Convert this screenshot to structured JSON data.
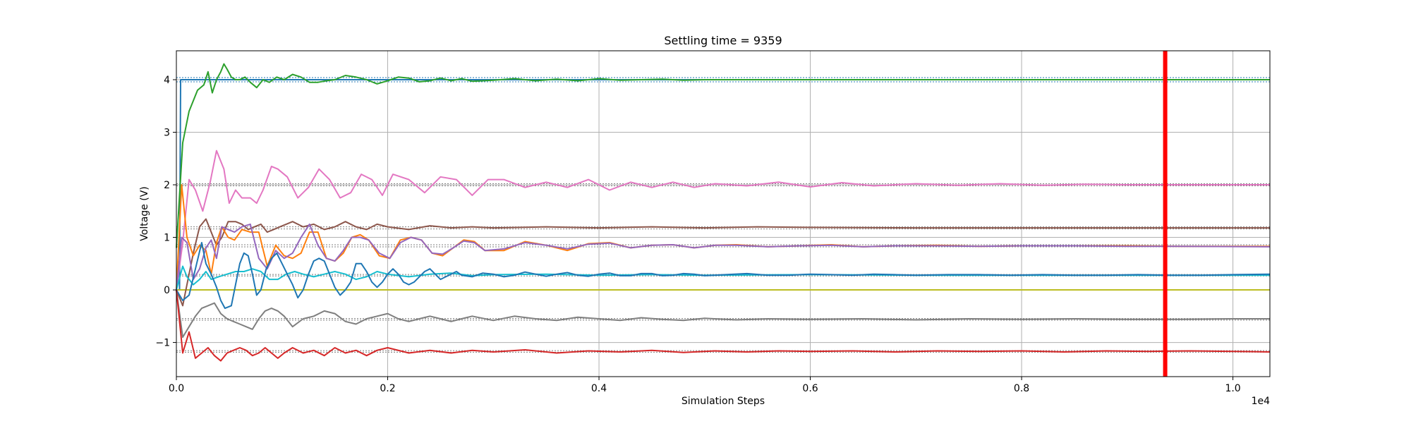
{
  "chart_data": {
    "type": "line",
    "title": "Settling time = 9359",
    "xlabel": "Simulation Steps",
    "ylabel": "Voltage (V)",
    "x_scale_label": "1e4",
    "xlim": [
      0,
      10350
    ],
    "ylim": [
      -1.65,
      4.55
    ],
    "grid": true,
    "x_ticks": [
      0,
      2000,
      4000,
      6000,
      8000,
      10000
    ],
    "x_tick_labels": [
      "0.0",
      "0.2",
      "0.4",
      "0.6",
      "0.8",
      "1.0"
    ],
    "y_ticks": [
      -1,
      0,
      1,
      2,
      3,
      4
    ],
    "y_tick_labels": [
      "−1",
      "0",
      "1",
      "2",
      "3",
      "4"
    ],
    "settling_marker": {
      "x": 9359,
      "color": "#ff0000"
    },
    "reference_lines": [
      {
        "y": 4.0,
        "band": 0.08,
        "color": "#1f77b4"
      },
      {
        "y": 2.0,
        "band": 0.04,
        "color": "#7f7f7f"
      },
      {
        "y": 1.18,
        "band": 0.04,
        "color": "#7f7f7f"
      },
      {
        "y": 0.84,
        "band": 0.04,
        "color": "#7f7f7f"
      },
      {
        "y": 0.28,
        "band": 0.03,
        "color": "#7f7f7f"
      },
      {
        "y": -0.56,
        "band": 0.03,
        "color": "#7f7f7f"
      },
      {
        "y": -1.17,
        "band": 0.03,
        "color": "#7f7f7f"
      }
    ],
    "series": [
      {
        "color": "#1f77b4",
        "x": [
          0,
          30,
          40,
          10350
        ],
        "y": [
          0,
          0,
          4.0,
          4.0
        ]
      },
      {
        "color": "#bcbd22",
        "x": [
          0,
          10350
        ],
        "y": [
          0,
          0
        ]
      },
      {
        "color": "#2ca02c",
        "x": [
          0,
          60,
          120,
          200,
          260,
          300,
          340,
          380,
          420,
          450,
          480,
          520,
          560,
          600,
          650,
          700,
          760,
          820,
          880,
          950,
          1020,
          1100,
          1180,
          1260,
          1340,
          1420,
          1500,
          1600,
          1700,
          1800,
          1900,
          2000,
          2100,
          2200,
          2300,
          2400,
          2500,
          2600,
          2700,
          2800,
          3000,
          3200,
          3400,
          3600,
          3800,
          4000,
          4200,
          4400,
          4600,
          4800,
          5000,
          5300,
          5600,
          6000,
          6500,
          7000,
          7500,
          8000,
          8500,
          9000,
          9500,
          10000,
          10350
        ],
        "y": [
          0.8,
          2.8,
          3.4,
          3.8,
          3.9,
          4.15,
          3.75,
          4.0,
          4.15,
          4.3,
          4.2,
          4.05,
          4.0,
          4.0,
          4.05,
          3.95,
          3.85,
          4.0,
          3.95,
          4.05,
          4.0,
          4.1,
          4.05,
          3.95,
          3.95,
          3.98,
          4.0,
          4.08,
          4.05,
          4.0,
          3.92,
          3.98,
          4.05,
          4.03,
          3.96,
          3.98,
          4.03,
          3.98,
          4.02,
          3.97,
          3.99,
          4.02,
          3.98,
          4.01,
          3.98,
          4.02,
          3.99,
          4.0,
          4.01,
          3.99,
          4.0,
          4.0,
          4.0,
          4.0,
          4.0,
          4.0,
          4.0,
          4.0,
          4.0,
          4.0,
          4.0,
          4.0,
          4.0
        ]
      },
      {
        "color": "#e377c2",
        "x": [
          0,
          60,
          120,
          180,
          250,
          320,
          380,
          450,
          500,
          560,
          620,
          700,
          760,
          820,
          900,
          960,
          1050,
          1150,
          1250,
          1350,
          1450,
          1550,
          1650,
          1750,
          1850,
          1950,
          2050,
          2200,
          2350,
          2500,
          2650,
          2800,
          2950,
          3100,
          3300,
          3500,
          3700,
          3900,
          4100,
          4300,
          4500,
          4700,
          4900,
          5100,
          5400,
          5700,
          6000,
          6300,
          6600,
          7000,
          7400,
          7800,
          8200,
          8600,
          9000,
          9400,
          9800,
          10350
        ],
        "y": [
          0,
          0.9,
          2.1,
          1.9,
          1.5,
          2.05,
          2.65,
          2.3,
          1.65,
          1.9,
          1.75,
          1.75,
          1.65,
          1.9,
          2.35,
          2.3,
          2.15,
          1.75,
          1.95,
          2.3,
          2.1,
          1.75,
          1.85,
          2.2,
          2.1,
          1.8,
          2.2,
          2.1,
          1.85,
          2.15,
          2.1,
          1.8,
          2.1,
          2.1,
          1.95,
          2.05,
          1.95,
          2.1,
          1.9,
          2.05,
          1.95,
          2.05,
          1.95,
          2.02,
          1.98,
          2.05,
          1.96,
          2.04,
          1.98,
          2.02,
          1.99,
          2.02,
          1.99,
          2.01,
          2.0,
          2.0,
          2.0,
          2.0
        ]
      },
      {
        "color": "#8c564b",
        "x": [
          0,
          60,
          100,
          160,
          220,
          280,
          330,
          380,
          430,
          490,
          560,
          620,
          680,
          740,
          800,
          860,
          920,
          980,
          1040,
          1100,
          1200,
          1300,
          1400,
          1500,
          1600,
          1700,
          1800,
          1900,
          2000,
          2200,
          2400,
          2600,
          2800,
          3000,
          3500,
          4000,
          4500,
          5000,
          5500,
          6000,
          7000,
          8000,
          9000,
          10350
        ],
        "y": [
          0,
          -0.3,
          0.1,
          0.7,
          1.2,
          1.35,
          1.1,
          0.85,
          1.0,
          1.3,
          1.3,
          1.25,
          1.15,
          1.2,
          1.25,
          1.1,
          1.15,
          1.2,
          1.25,
          1.3,
          1.2,
          1.25,
          1.15,
          1.2,
          1.3,
          1.2,
          1.15,
          1.25,
          1.2,
          1.15,
          1.22,
          1.18,
          1.2,
          1.18,
          1.2,
          1.18,
          1.2,
          1.18,
          1.2,
          1.19,
          1.18,
          1.18,
          1.18,
          1.18
        ]
      },
      {
        "color": "#ff7f0e",
        "x": [
          0,
          50,
          100,
          160,
          220,
          280,
          330,
          380,
          430,
          490,
          550,
          620,
          700,
          780,
          860,
          940,
          1020,
          1100,
          1180,
          1260,
          1340,
          1420,
          1500,
          1580,
          1660,
          1740,
          1820,
          1920,
          2020,
          2120,
          2220,
          2320,
          2420,
          2520,
          2620,
          2720,
          2820,
          2920,
          3100,
          3300,
          3500,
          3700,
          3900,
          4100,
          4300,
          4500,
          4700,
          4900,
          5100,
          5300,
          5600,
          5900,
          6200,
          6500,
          6800,
          7200,
          7600,
          8000,
          8500,
          9000,
          9500,
          10350
        ],
        "y": [
          0,
          2.0,
          1.0,
          0.65,
          0.85,
          0.75,
          0.3,
          0.9,
          1.2,
          1.0,
          0.95,
          1.15,
          1.1,
          1.1,
          0.45,
          0.85,
          0.65,
          0.6,
          0.7,
          1.1,
          1.1,
          0.6,
          0.55,
          0.7,
          1.0,
          1.05,
          0.95,
          0.65,
          0.6,
          0.95,
          1.0,
          0.95,
          0.7,
          0.65,
          0.8,
          0.95,
          0.92,
          0.75,
          0.75,
          0.92,
          0.85,
          0.75,
          0.88,
          0.9,
          0.8,
          0.85,
          0.86,
          0.8,
          0.85,
          0.86,
          0.82,
          0.84,
          0.86,
          0.82,
          0.84,
          0.85,
          0.83,
          0.84,
          0.84,
          0.84,
          0.83,
          0.83
        ]
      },
      {
        "color": "#9467bd",
        "x": [
          0,
          50,
          100,
          160,
          220,
          280,
          330,
          380,
          430,
          490,
          550,
          620,
          700,
          780,
          860,
          940,
          1020,
          1100,
          1180,
          1260,
          1340,
          1420,
          1500,
          1580,
          1660,
          1740,
          1820,
          1920,
          2020,
          2120,
          2220,
          2320,
          2420,
          2520,
          2620,
          2720,
          2820,
          2920,
          3100,
          3300,
          3500,
          3700,
          3900,
          4100,
          4300,
          4500,
          4700,
          4900,
          5100,
          5300,
          5600,
          5900,
          6200,
          6500,
          6800,
          7200,
          7600,
          8000,
          8500,
          9000,
          9500,
          10350
        ],
        "y": [
          0,
          1.0,
          0.9,
          0.2,
          0.4,
          0.8,
          0.95,
          0.6,
          1.2,
          1.15,
          1.1,
          1.2,
          1.25,
          0.6,
          0.4,
          0.75,
          0.6,
          0.7,
          1.0,
          1.25,
          0.85,
          0.6,
          0.55,
          0.75,
          1.0,
          1.0,
          0.95,
          0.7,
          0.6,
          0.9,
          1.0,
          0.95,
          0.7,
          0.68,
          0.8,
          0.93,
          0.9,
          0.75,
          0.78,
          0.9,
          0.85,
          0.78,
          0.87,
          0.89,
          0.8,
          0.85,
          0.86,
          0.8,
          0.85,
          0.85,
          0.82,
          0.84,
          0.85,
          0.82,
          0.84,
          0.84,
          0.83,
          0.84,
          0.84,
          0.83,
          0.83,
          0.82
        ]
      },
      {
        "color": "#17becf",
        "x": [
          0,
          60,
          100,
          160,
          220,
          280,
          330,
          400,
          480,
          560,
          640,
          720,
          800,
          880,
          960,
          1040,
          1120,
          1200,
          1300,
          1400,
          1500,
          1600,
          1700,
          1800,
          1900,
          2000,
          2200,
          2400,
          2600,
          2800,
          3000,
          3500,
          4000,
          4500,
          5000,
          6000,
          7000,
          8000,
          9000,
          10350
        ],
        "y": [
          0,
          0.45,
          0.25,
          0.1,
          0.2,
          0.35,
          0.2,
          0.25,
          0.3,
          0.35,
          0.35,
          0.4,
          0.35,
          0.2,
          0.2,
          0.3,
          0.35,
          0.3,
          0.25,
          0.3,
          0.35,
          0.3,
          0.2,
          0.25,
          0.35,
          0.3,
          0.25,
          0.3,
          0.32,
          0.27,
          0.29,
          0.3,
          0.28,
          0.29,
          0.28,
          0.29,
          0.28,
          0.28,
          0.28,
          0.28
        ]
      },
      {
        "color": "#1f77b4",
        "x": [
          0,
          60,
          120,
          180,
          240,
          280,
          330,
          380,
          420,
          460,
          520,
          560,
          600,
          640,
          680,
          720,
          760,
          800,
          850,
          900,
          950,
          1000,
          1050,
          1100,
          1150,
          1200,
          1250,
          1300,
          1350,
          1400,
          1450,
          1500,
          1550,
          1600,
          1650,
          1700,
          1750,
          1800,
          1850,
          1900,
          1950,
          2000,
          2050,
          2100,
          2150,
          2200,
          2250,
          2300,
          2350,
          2400,
          2450,
          2500,
          2550,
          2600,
          2650,
          2700,
          2800,
          2900,
          3000,
          3100,
          3200,
          3300,
          3400,
          3500,
          3600,
          3700,
          3800,
          3900,
          4000,
          4100,
          4200,
          4300,
          4400,
          4500,
          4600,
          4700,
          4800,
          4900,
          5000,
          5200,
          5400,
          5600,
          5800,
          6000,
          6200,
          6400,
          6600,
          6800,
          7000,
          7300,
          7600,
          7900,
          8200,
          8500,
          8800,
          9100,
          9400,
          9700,
          10000,
          10350
        ],
        "y": [
          0,
          -0.2,
          -0.1,
          0.4,
          0.9,
          0.5,
          0.3,
          0.05,
          -0.2,
          -0.35,
          -0.3,
          0.1,
          0.5,
          0.7,
          0.65,
          0.3,
          -0.1,
          0.0,
          0.4,
          0.6,
          0.7,
          0.5,
          0.3,
          0.1,
          -0.15,
          0.0,
          0.3,
          0.55,
          0.6,
          0.55,
          0.3,
          0.05,
          -0.1,
          0.0,
          0.15,
          0.5,
          0.5,
          0.35,
          0.15,
          0.05,
          0.15,
          0.3,
          0.4,
          0.3,
          0.15,
          0.1,
          0.15,
          0.25,
          0.35,
          0.4,
          0.3,
          0.2,
          0.25,
          0.3,
          0.35,
          0.28,
          0.25,
          0.32,
          0.3,
          0.25,
          0.28,
          0.34,
          0.3,
          0.26,
          0.3,
          0.33,
          0.28,
          0.26,
          0.3,
          0.32,
          0.27,
          0.27,
          0.31,
          0.31,
          0.27,
          0.28,
          0.31,
          0.3,
          0.27,
          0.29,
          0.31,
          0.28,
          0.28,
          0.3,
          0.29,
          0.28,
          0.3,
          0.29,
          0.28,
          0.29,
          0.29,
          0.28,
          0.29,
          0.28,
          0.28,
          0.29,
          0.28,
          0.28,
          0.29,
          0.3
        ]
      },
      {
        "color": "#7f7f7f",
        "x": [
          0,
          60,
          120,
          180,
          240,
          300,
          360,
          420,
          480,
          540,
          600,
          660,
          720,
          780,
          840,
          900,
          960,
          1020,
          1100,
          1200,
          1300,
          1400,
          1500,
          1600,
          1700,
          1800,
          1900,
          2000,
          2100,
          2200,
          2300,
          2400,
          2500,
          2600,
          2700,
          2800,
          2900,
          3000,
          3200,
          3400,
          3600,
          3800,
          4000,
          4200,
          4400,
          4600,
          4800,
          5000,
          5300,
          5600,
          6000,
          6500,
          7000,
          7500,
          8000,
          8500,
          9000,
          9500,
          10000,
          10350
        ],
        "y": [
          0,
          -0.9,
          -0.7,
          -0.5,
          -0.35,
          -0.3,
          -0.25,
          -0.45,
          -0.55,
          -0.6,
          -0.65,
          -0.7,
          -0.75,
          -0.55,
          -0.4,
          -0.35,
          -0.4,
          -0.5,
          -0.7,
          -0.55,
          -0.5,
          -0.4,
          -0.45,
          -0.6,
          -0.65,
          -0.55,
          -0.5,
          -0.45,
          -0.55,
          -0.6,
          -0.55,
          -0.5,
          -0.55,
          -0.6,
          -0.55,
          -0.5,
          -0.54,
          -0.58,
          -0.5,
          -0.55,
          -0.58,
          -0.52,
          -0.55,
          -0.58,
          -0.53,
          -0.56,
          -0.58,
          -0.54,
          -0.57,
          -0.55,
          -0.56,
          -0.55,
          -0.57,
          -0.55,
          -0.56,
          -0.55,
          -0.56,
          -0.56,
          -0.55,
          -0.55
        ]
      },
      {
        "color": "#d62728",
        "x": [
          0,
          60,
          120,
          180,
          240,
          300,
          360,
          420,
          480,
          540,
          600,
          660,
          720,
          780,
          840,
          900,
          960,
          1020,
          1100,
          1200,
          1300,
          1400,
          1500,
          1600,
          1700,
          1800,
          1900,
          2000,
          2200,
          2400,
          2600,
          2800,
          3000,
          3300,
          3600,
          3900,
          4200,
          4500,
          4800,
          5100,
          5400,
          5700,
          6000,
          6400,
          6800,
          7200,
          7600,
          8000,
          8400,
          8800,
          9200,
          9600,
          10000,
          10350
        ],
        "y": [
          0,
          -1.2,
          -0.8,
          -1.3,
          -1.2,
          -1.1,
          -1.25,
          -1.35,
          -1.2,
          -1.15,
          -1.1,
          -1.15,
          -1.25,
          -1.2,
          -1.1,
          -1.2,
          -1.3,
          -1.2,
          -1.1,
          -1.2,
          -1.15,
          -1.25,
          -1.1,
          -1.2,
          -1.15,
          -1.25,
          -1.15,
          -1.1,
          -1.2,
          -1.15,
          -1.2,
          -1.15,
          -1.18,
          -1.14,
          -1.2,
          -1.16,
          -1.18,
          -1.15,
          -1.19,
          -1.16,
          -1.18,
          -1.16,
          -1.17,
          -1.16,
          -1.18,
          -1.16,
          -1.17,
          -1.16,
          -1.18,
          -1.16,
          -1.17,
          -1.16,
          -1.17,
          -1.18
        ]
      }
    ]
  }
}
